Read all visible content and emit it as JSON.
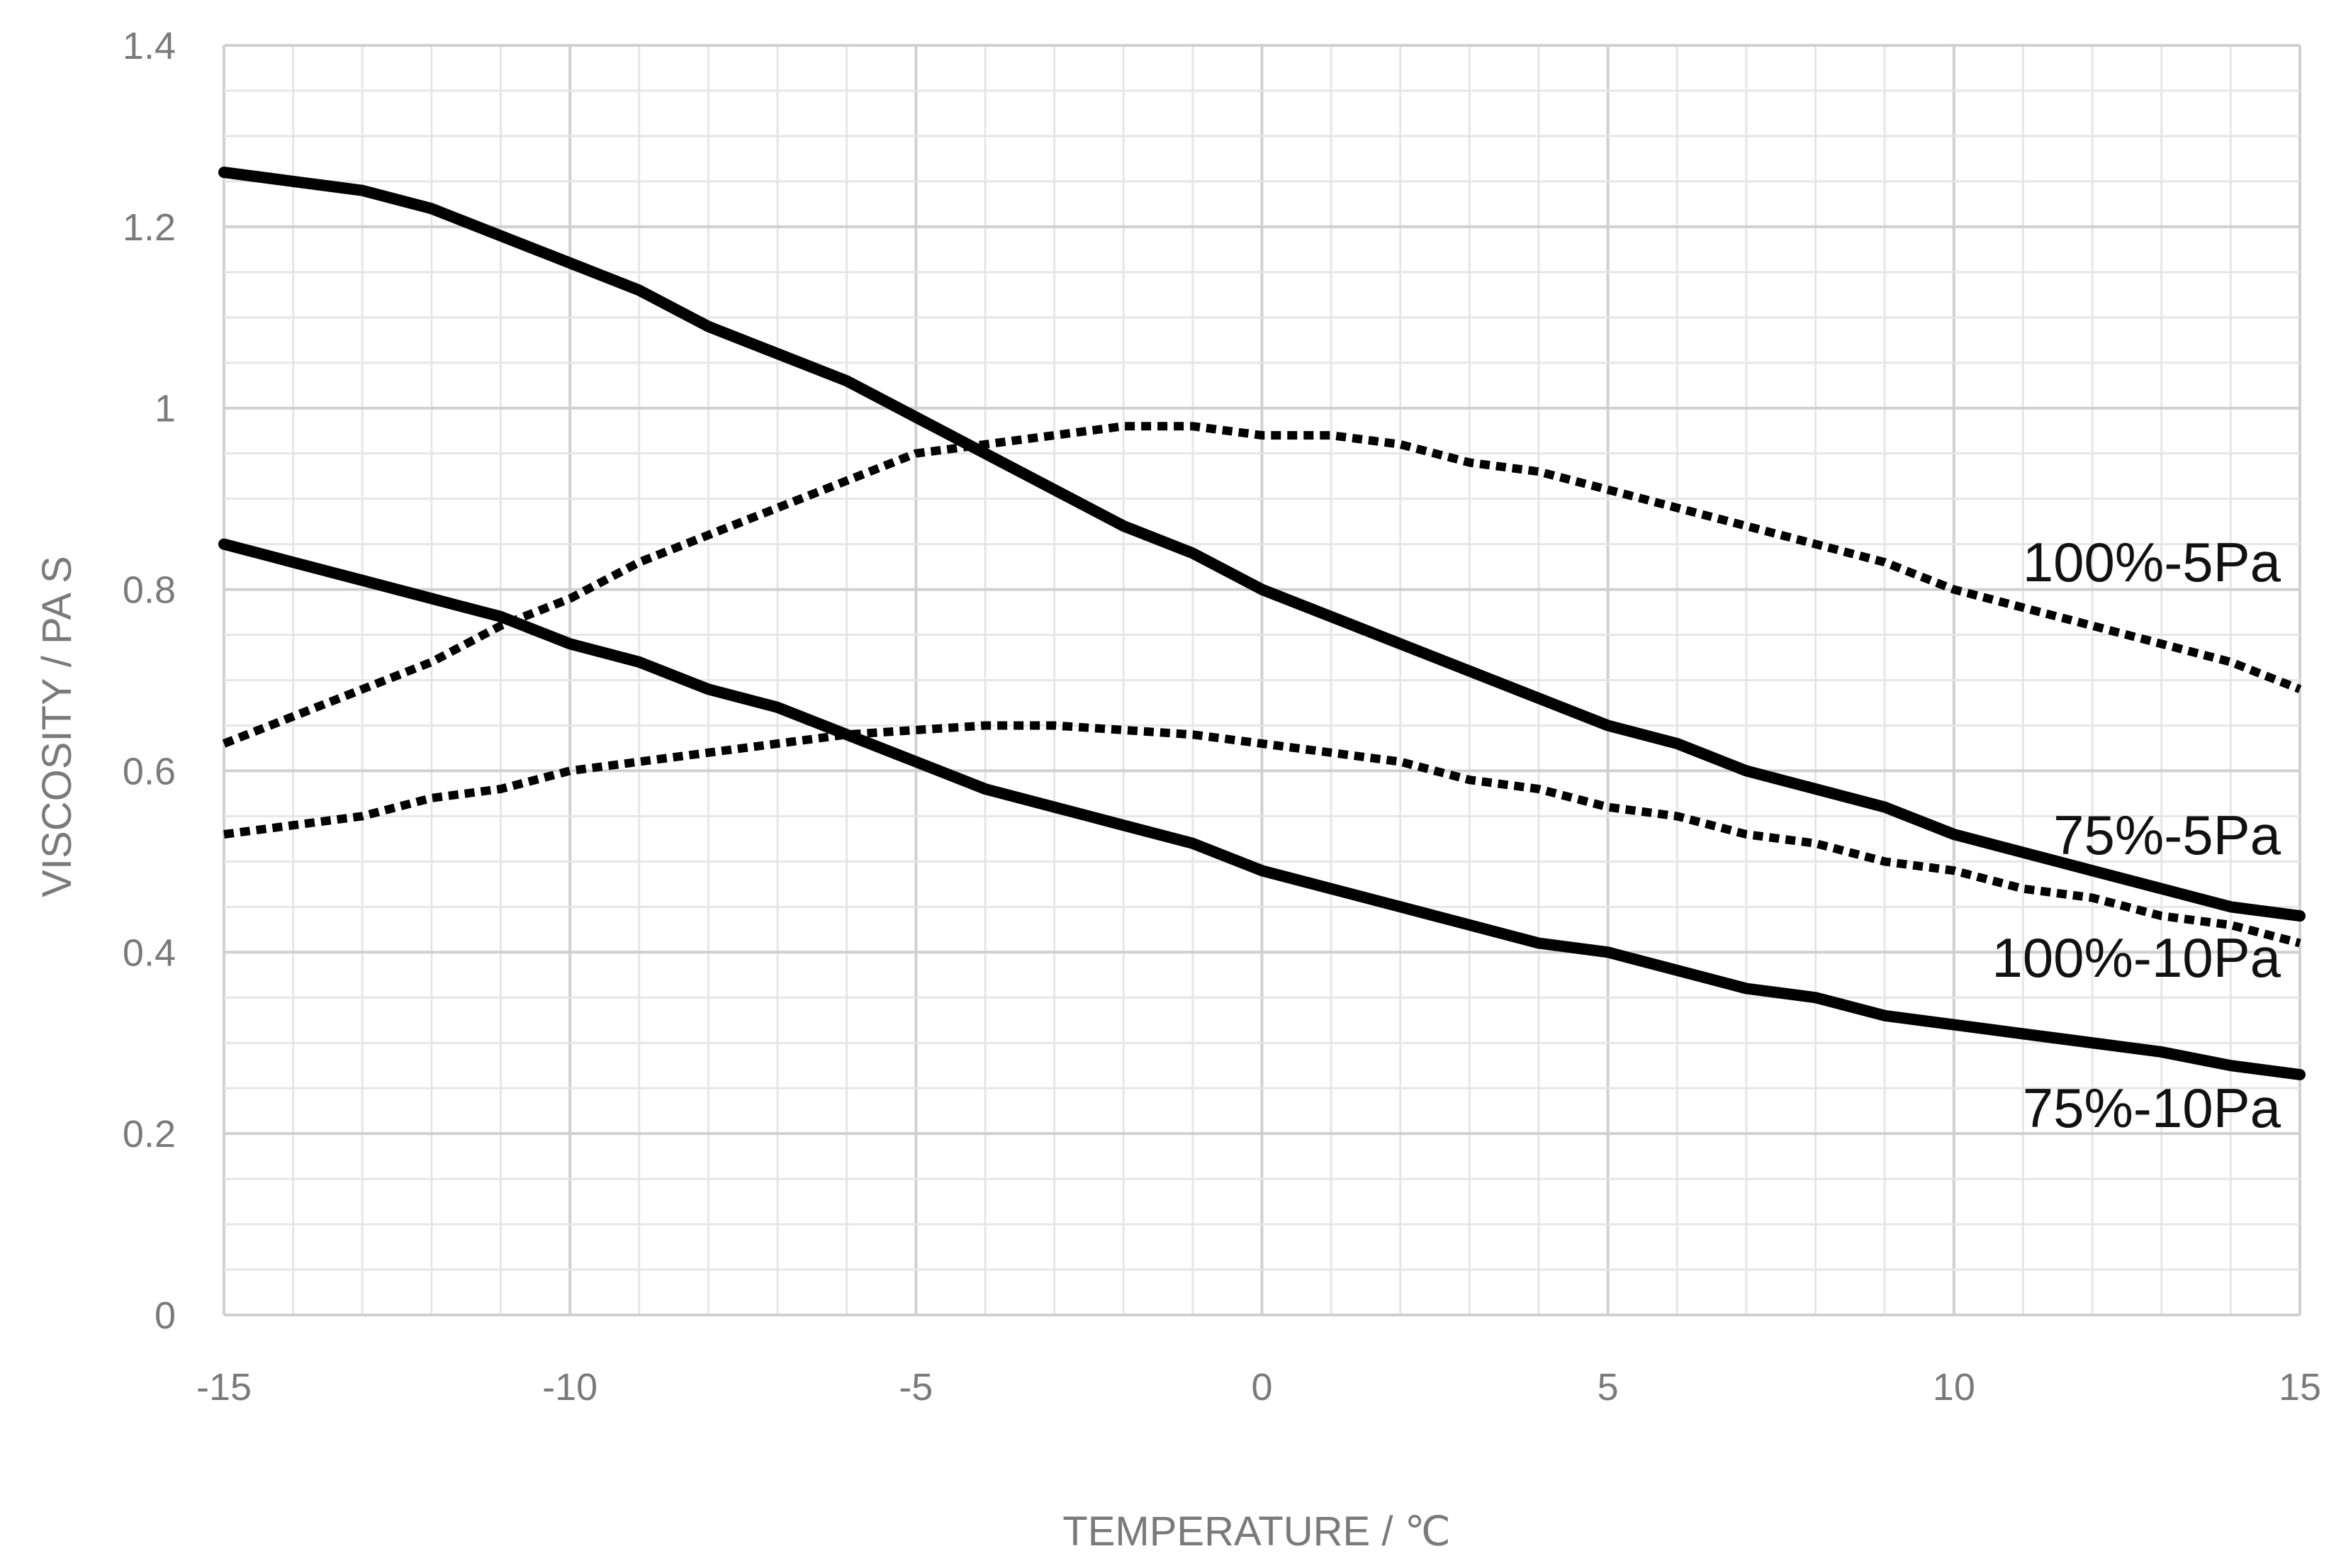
{
  "chart_data": {
    "type": "line",
    "xlabel": "TEMPERATURE / ℃",
    "ylabel": "VISCOSITY / PA S",
    "xlim": [
      -15,
      15
    ],
    "ylim": [
      0,
      1.4
    ],
    "xticks": [
      "-15",
      "-10",
      "-5",
      "0",
      "5",
      "10",
      "15"
    ],
    "yticks": [
      "0",
      "0.2",
      "0.4",
      "0.6",
      "0.8",
      "1",
      "1.2",
      "1.4"
    ],
    "grid": true,
    "colors": {
      "line": "#000000",
      "grid_major": "#d0d0d0",
      "grid_minor": "#e6e6e6",
      "axis_text": "#7a7a7a"
    },
    "series": [
      {
        "name": "100%-5Pa",
        "style": "dotted",
        "x": [
          -15,
          -14,
          -13,
          -12,
          -11,
          -10,
          -9,
          -8,
          -7,
          -6,
          -5,
          -4,
          -3,
          -2,
          -1,
          0,
          1,
          2,
          3,
          4,
          5,
          6,
          7,
          8,
          9,
          10,
          11,
          12,
          13,
          14,
          15
        ],
        "y": [
          0.63,
          0.66,
          0.69,
          0.72,
          0.76,
          0.79,
          0.83,
          0.86,
          0.89,
          0.92,
          0.95,
          0.96,
          0.97,
          0.98,
          0.98,
          0.97,
          0.97,
          0.96,
          0.94,
          0.93,
          0.91,
          0.89,
          0.87,
          0.85,
          0.83,
          0.8,
          0.78,
          0.76,
          0.74,
          0.72,
          0.69
        ]
      },
      {
        "name": "75%-5Pa",
        "style": "solid",
        "x": [
          -15,
          -14,
          -13,
          -12,
          -11,
          -10,
          -9,
          -8,
          -7,
          -6,
          -5,
          -4,
          -3,
          -2,
          -1,
          0,
          1,
          2,
          3,
          4,
          5,
          6,
          7,
          8,
          9,
          10,
          11,
          12,
          13,
          14,
          15
        ],
        "y": [
          1.26,
          1.25,
          1.24,
          1.22,
          1.19,
          1.16,
          1.13,
          1.09,
          1.06,
          1.03,
          0.99,
          0.95,
          0.91,
          0.87,
          0.84,
          0.8,
          0.77,
          0.74,
          0.71,
          0.68,
          0.65,
          0.63,
          0.6,
          0.58,
          0.56,
          0.53,
          0.51,
          0.49,
          0.47,
          0.45,
          0.44
        ]
      },
      {
        "name": "100%-10Pa",
        "style": "dotted",
        "x": [
          -15,
          -14,
          -13,
          -12,
          -11,
          -10,
          -9,
          -8,
          -7,
          -6,
          -5,
          -4,
          -3,
          -2,
          -1,
          0,
          1,
          2,
          3,
          4,
          5,
          6,
          7,
          8,
          9,
          10,
          11,
          12,
          13,
          14,
          15
        ],
        "y": [
          0.53,
          0.54,
          0.55,
          0.57,
          0.58,
          0.6,
          0.61,
          0.62,
          0.63,
          0.64,
          0.645,
          0.65,
          0.65,
          0.645,
          0.64,
          0.63,
          0.62,
          0.61,
          0.59,
          0.58,
          0.56,
          0.55,
          0.53,
          0.52,
          0.5,
          0.49,
          0.47,
          0.46,
          0.44,
          0.43,
          0.41
        ]
      },
      {
        "name": "75%-10Pa",
        "style": "solid",
        "x": [
          -15,
          -14,
          -13,
          -12,
          -11,
          -10,
          -9,
          -8,
          -7,
          -6,
          -5,
          -4,
          -3,
          -2,
          -1,
          0,
          1,
          2,
          3,
          4,
          5,
          6,
          7,
          8,
          9,
          10,
          11,
          12,
          13,
          14,
          15
        ],
        "y": [
          0.85,
          0.83,
          0.81,
          0.79,
          0.77,
          0.74,
          0.72,
          0.69,
          0.67,
          0.64,
          0.61,
          0.58,
          0.56,
          0.54,
          0.52,
          0.49,
          0.47,
          0.45,
          0.43,
          0.41,
          0.4,
          0.38,
          0.36,
          0.35,
          0.33,
          0.32,
          0.31,
          0.3,
          0.29,
          0.275,
          0.265
        ]
      }
    ]
  }
}
